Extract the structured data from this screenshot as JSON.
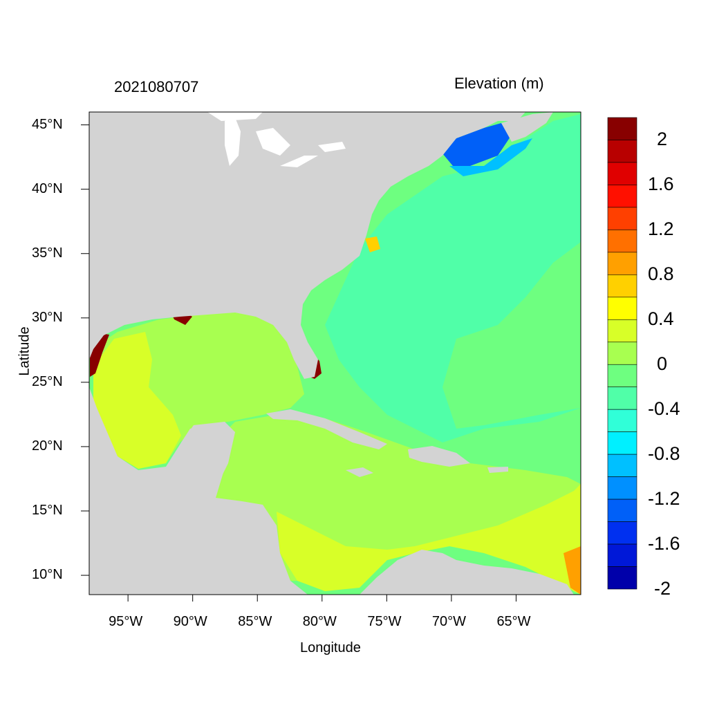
{
  "title_left": "2021080707",
  "title_right": "Elevation (m)",
  "xlabel": "Longitude",
  "ylabel": "Latitude",
  "colors": {
    "land": "#d3d3d3",
    "ocean_base": "#6eff80",
    "scale": [
      "#0000aa",
      "#0018d8",
      "#0030f0",
      "#0060f8",
      "#0090ff",
      "#00c0ff",
      "#00f0ff",
      "#30ffd8",
      "#50ffa8",
      "#6eff80",
      "#a8ff50",
      "#d8ff28",
      "#ffff00",
      "#ffd000",
      "#ffa000",
      "#ff7000",
      "#ff4000",
      "#ff1000",
      "#e00000",
      "#b80000",
      "#880000"
    ]
  },
  "map": {
    "lon_range": [
      -98,
      -60
    ],
    "lat_range": [
      8.5,
      46
    ],
    "x_ticks": [
      {
        "lon": -95,
        "label": "95°W"
      },
      {
        "lon": -90,
        "label": "90°W"
      },
      {
        "lon": -85,
        "label": "85°W"
      },
      {
        "lon": -80,
        "label": "80°W"
      },
      {
        "lon": -75,
        "label": "75°W"
      },
      {
        "lon": -70,
        "label": "70°W"
      },
      {
        "lon": -65,
        "label": "65°W"
      }
    ],
    "y_ticks": [
      {
        "lat": 45,
        "label": "45°N"
      },
      {
        "lat": 40,
        "label": "40°N"
      },
      {
        "lat": 35,
        "label": "35°N"
      },
      {
        "lat": 30,
        "label": "30°N"
      },
      {
        "lat": 25,
        "label": "25°N"
      },
      {
        "lat": 20,
        "label": "20°N"
      },
      {
        "lat": 15,
        "label": "15°N"
      },
      {
        "lat": 10,
        "label": "10°N"
      }
    ]
  },
  "colorbar": {
    "labels": [
      "2",
      "1.6",
      "1.2",
      "0.8",
      "0.4",
      "0",
      "-0.4",
      "-0.8",
      "-1.2",
      "-1.6",
      "-2"
    ]
  }
}
